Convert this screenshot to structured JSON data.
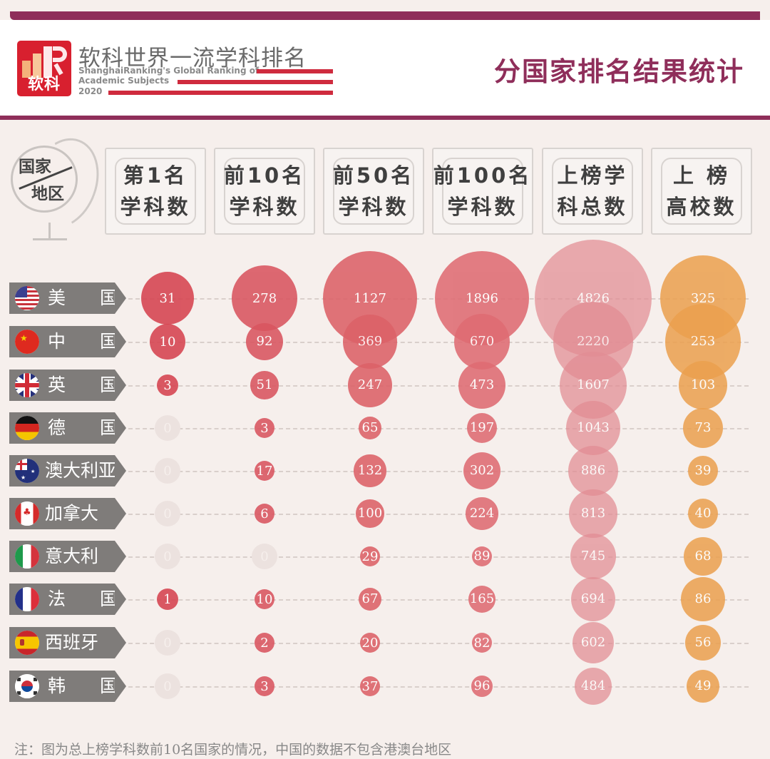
{
  "header": {
    "logo_text": "软科",
    "brand_cn": "软科世界一流学科排名",
    "brand_en_line1": "ShanghaiRanking's Global Ranking of",
    "brand_en_line2": "Academic Subjects",
    "brand_en_line3": "2020",
    "page_title": "分国家排名结果统计",
    "accent_color": "#8f2e5a",
    "logo_color": "#d8202f"
  },
  "corner_label": {
    "top": "国家",
    "bottom": "地区"
  },
  "columns": [
    {
      "line1": "第1名",
      "line2": "学科数"
    },
    {
      "line1": "前10名",
      "line2": "学科数"
    },
    {
      "line1": "前50名",
      "line2": "学科数"
    },
    {
      "line1": "前100名",
      "line2": "学科数"
    },
    {
      "line1": "上榜学",
      "line2": "科总数"
    },
    {
      "line1": "上 榜",
      "line2": "高校数"
    }
  ],
  "rows": [
    {
      "country": "美 国",
      "flag": "us-flag-icon",
      "values": [
        "31",
        "278",
        "1127",
        "1896",
        "4826",
        "325"
      ]
    },
    {
      "country": "中 国",
      "flag": "china-flag-icon",
      "values": [
        "10",
        "92",
        "369",
        "670",
        "2220",
        "253"
      ]
    },
    {
      "country": "英 国",
      "flag": "uk-flag-icon",
      "values": [
        "3",
        "51",
        "247",
        "473",
        "1607",
        "103"
      ]
    },
    {
      "country": "德 国",
      "flag": "germany-flag-icon",
      "values": [
        "0",
        "3",
        "65",
        "197",
        "1043",
        "73"
      ]
    },
    {
      "country": "澳大利亚",
      "flag": "australia-flag-icon",
      "values": [
        "0",
        "17",
        "132",
        "302",
        "886",
        "39"
      ]
    },
    {
      "country": "加拿大",
      "flag": "canada-flag-icon",
      "values": [
        "0",
        "6",
        "100",
        "224",
        "813",
        "40"
      ]
    },
    {
      "country": "意大利",
      "flag": "italy-flag-icon",
      "values": [
        "0",
        "0",
        "29",
        "89",
        "745",
        "68"
      ]
    },
    {
      "country": "法 国",
      "flag": "france-flag-icon",
      "values": [
        "1",
        "10",
        "67",
        "165",
        "694",
        "86"
      ]
    },
    {
      "country": "西班牙",
      "flag": "spain-flag-icon",
      "values": [
        "0",
        "2",
        "20",
        "82",
        "602",
        "56"
      ]
    },
    {
      "country": "韩 国",
      "flag": "korea-flag-icon",
      "values": [
        "0",
        "3",
        "37",
        "96",
        "484",
        "49"
      ]
    }
  ],
  "footnote": "注：图为总上榜学科数前10名国家的情况，中国的数据不包含港澳台地区",
  "chart_data": {
    "type": "bubble-table",
    "title": "分国家排名结果统计",
    "subtitle": "软科世界一流学科排名 ShanghaiRanking's Global Ranking of Academic Subjects 2020",
    "categories": [
      "美国",
      "中国",
      "英国",
      "德国",
      "澳大利亚",
      "加拿大",
      "意大利",
      "法国",
      "西班牙",
      "韩国"
    ],
    "series": [
      {
        "name": "第1名学科数",
        "color": "#d6434f",
        "values": [
          31,
          10,
          3,
          0,
          0,
          0,
          0,
          1,
          0,
          0
        ]
      },
      {
        "name": "前10名学科数",
        "color": "#d95560",
        "values": [
          278,
          92,
          51,
          3,
          17,
          6,
          0,
          10,
          2,
          3
        ]
      },
      {
        "name": "前50名学科数",
        "color": "#dc6168",
        "values": [
          1127,
          369,
          247,
          65,
          132,
          100,
          29,
          67,
          20,
          37
        ]
      },
      {
        "name": "前100名学科数",
        "color": "#df6c73",
        "values": [
          1896,
          670,
          473,
          197,
          302,
          224,
          89,
          165,
          82,
          96
        ]
      },
      {
        "name": "上榜学科总数",
        "color": "#e28c93",
        "values": [
          4826,
          2220,
          1607,
          1043,
          886,
          813,
          745,
          694,
          602,
          484
        ]
      },
      {
        "name": "上榜高校数",
        "color": "#eba04e",
        "values": [
          325,
          253,
          103,
          73,
          39,
          40,
          68,
          86,
          56,
          49
        ]
      }
    ],
    "zero_color": "#ece2df",
    "annotation": "注：图为总上榜学科数前10名国家的情况，中国的数据不包含港澳台地区"
  }
}
